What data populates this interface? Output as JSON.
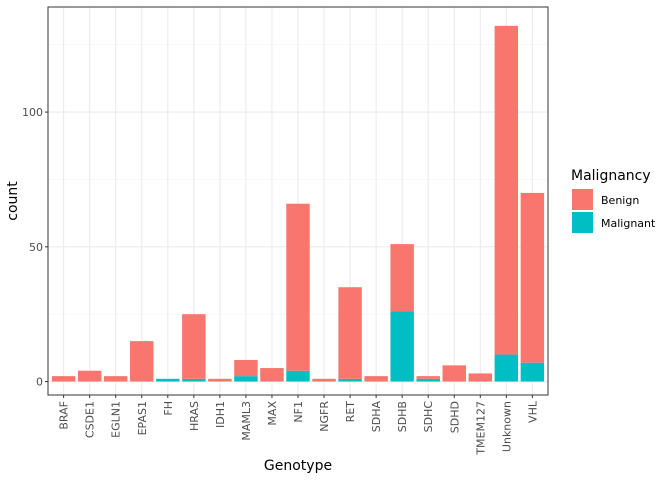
{
  "chart_data": {
    "type": "bar",
    "stacked": true,
    "xlabel": "Genotype",
    "ylabel": "count",
    "ylim": [
      -5,
      139
    ],
    "yticks": [
      0,
      50,
      100
    ],
    "grid": true,
    "legend": {
      "title": "Malignancy",
      "position": "right"
    },
    "categories": [
      "BRAF",
      "CSDE1",
      "EGLN1",
      "EPAS1",
      "FH",
      "HRAS",
      "IDH1",
      "MAML3",
      "MAX",
      "NF1",
      "NGFR",
      "RET",
      "SDHA",
      "SDHB",
      "SDHC",
      "SDHD",
      "TMEM127",
      "Unknown",
      "VHL"
    ],
    "series": [
      {
        "name": "Benign",
        "color": "#F8766D",
        "values": [
          2,
          4,
          2,
          15,
          0,
          24,
          1,
          6,
          5,
          62,
          1,
          34,
          2,
          25,
          1,
          6,
          3,
          122,
          63
        ]
      },
      {
        "name": "Malignant",
        "color": "#00BFC4",
        "values": [
          0,
          0,
          0,
          0,
          1,
          1,
          0,
          2,
          0,
          4,
          0,
          1,
          0,
          26,
          1,
          0,
          0,
          10,
          7
        ]
      }
    ]
  }
}
